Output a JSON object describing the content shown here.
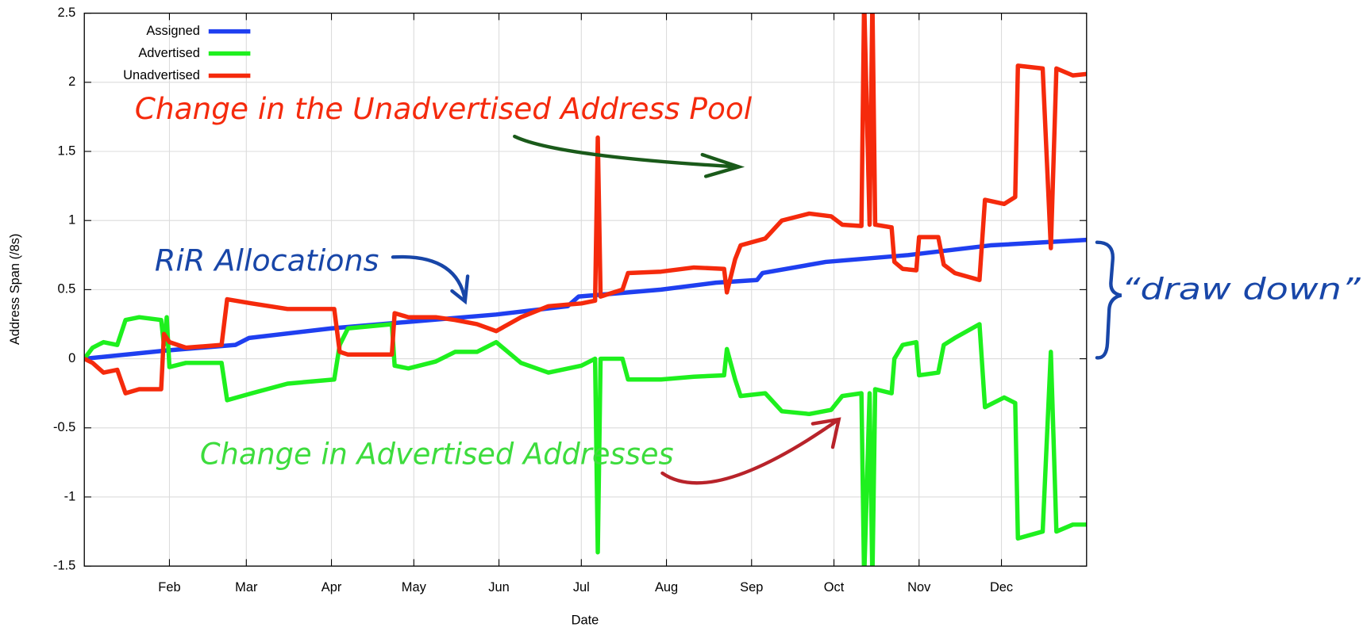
{
  "chart_data": {
    "type": "line",
    "xlabel": "Date",
    "ylabel": "Address Span (/8s)",
    "xlim": [
      0,
      365
    ],
    "xticks": [
      {
        "value": 31,
        "label": "Feb"
      },
      {
        "value": 59,
        "label": "Mar"
      },
      {
        "value": 90,
        "label": "Apr"
      },
      {
        "value": 120,
        "label": "May"
      },
      {
        "value": 151,
        "label": "Jun"
      },
      {
        "value": 181,
        "label": "Jul"
      },
      {
        "value": 212,
        "label": "Aug"
      },
      {
        "value": 243,
        "label": "Sep"
      },
      {
        "value": 273,
        "label": "Oct"
      },
      {
        "value": 304,
        "label": "Nov"
      },
      {
        "value": 334,
        "label": "Dec"
      }
    ],
    "ylim": [
      -1.5,
      2.5
    ],
    "yticks": [
      -1.5,
      -1,
      -0.5,
      0,
      0.5,
      1,
      1.5,
      2,
      2.5
    ],
    "grid": true,
    "legend": "upper left",
    "series": [
      {
        "name": "Assigned",
        "color": "#1f3ff0",
        "x": [
          0,
          30,
          55,
          60,
          90,
          120,
          150,
          176,
          180,
          210,
          230,
          245,
          247,
          270,
          300,
          330,
          365
        ],
        "values": [
          0,
          0.06,
          0.1,
          0.15,
          0.22,
          0.27,
          0.32,
          0.38,
          0.45,
          0.5,
          0.55,
          0.57,
          0.62,
          0.7,
          0.75,
          0.82,
          0.86
        ]
      },
      {
        "name": "Advertised",
        "color": "#1ef01e",
        "x": [
          0,
          3,
          7,
          12,
          15,
          20,
          28,
          29,
          30,
          31,
          37,
          50,
          52,
          61,
          74,
          91,
          93,
          96,
          112,
          113,
          118,
          128,
          135,
          143,
          150,
          159,
          169,
          181,
          186,
          187,
          188,
          196,
          198,
          210,
          222,
          233,
          234,
          237,
          239,
          248,
          254,
          264,
          272,
          276,
          283,
          284,
          286,
          287,
          288,
          294,
          295,
          298,
          303,
          304,
          311,
          313,
          317,
          326,
          328,
          335,
          339,
          340,
          349,
          352,
          354,
          360,
          365
        ],
        "values": [
          0,
          0.08,
          0.12,
          0.1,
          0.28,
          0.3,
          0.28,
          0.1,
          0.3,
          -0.06,
          -0.03,
          -0.03,
          -0.3,
          -0.25,
          -0.18,
          -0.15,
          0.1,
          0.22,
          0.25,
          -0.05,
          -0.07,
          -0.02,
          0.05,
          0.05,
          0.12,
          -0.03,
          -0.1,
          -0.05,
          0,
          -1.4,
          0,
          0,
          -0.15,
          -0.15,
          -0.13,
          -0.12,
          0.07,
          -0.15,
          -0.27,
          -0.25,
          -0.38,
          -0.4,
          -0.37,
          -0.27,
          -0.25,
          -1.6,
          -0.25,
          -1.6,
          -0.22,
          -0.25,
          0,
          0.1,
          0.12,
          -0.12,
          -0.1,
          0.1,
          0.15,
          0.25,
          -0.35,
          -0.28,
          -0.32,
          -1.3,
          -1.25,
          0.05,
          -1.25,
          -1.2,
          -1.2
        ]
      },
      {
        "name": "Unadvertised",
        "color": "#f52a0c",
        "x": [
          0,
          3,
          7,
          12,
          15,
          20,
          28,
          29,
          31,
          37,
          50,
          52,
          61,
          74,
          91,
          93,
          96,
          112,
          113,
          118,
          128,
          135,
          143,
          150,
          159,
          169,
          181,
          186,
          187,
          188,
          196,
          198,
          210,
          222,
          233,
          234,
          237,
          239,
          248,
          254,
          264,
          272,
          276,
          283,
          284,
          286,
          287,
          288,
          294,
          295,
          298,
          303,
          304,
          311,
          313,
          317,
          326,
          328,
          335,
          339,
          340,
          349,
          352,
          354,
          360,
          365
        ],
        "values": [
          0,
          -0.03,
          -0.1,
          -0.08,
          -0.25,
          -0.22,
          -0.22,
          0.18,
          0.12,
          0.08,
          0.1,
          0.43,
          0.4,
          0.36,
          0.36,
          0.05,
          0.03,
          0.03,
          0.33,
          0.3,
          0.3,
          0.28,
          0.25,
          0.2,
          0.3,
          0.38,
          0.4,
          0.42,
          1.6,
          0.45,
          0.5,
          0.62,
          0.63,
          0.66,
          0.65,
          0.48,
          0.72,
          0.82,
          0.87,
          1.0,
          1.05,
          1.03,
          0.97,
          0.96,
          2.6,
          0.97,
          2.6,
          0.97,
          0.95,
          0.7,
          0.65,
          0.64,
          0.88,
          0.88,
          0.68,
          0.62,
          0.57,
          1.15,
          1.12,
          1.17,
          2.12,
          2.1,
          0.8,
          2.1,
          2.05,
          2.06
        ]
      }
    ],
    "annotations": [
      {
        "text": "Change in the Unadvertised Address Pool",
        "color": "#f52a0c"
      },
      {
        "text": "RiR Allocations",
        "color": "#1846a8"
      },
      {
        "text": "Change in Advertised Addresses",
        "color": "#3ddc3d"
      },
      {
        "text": "“draw down”",
        "color": "#1846a8"
      }
    ]
  }
}
